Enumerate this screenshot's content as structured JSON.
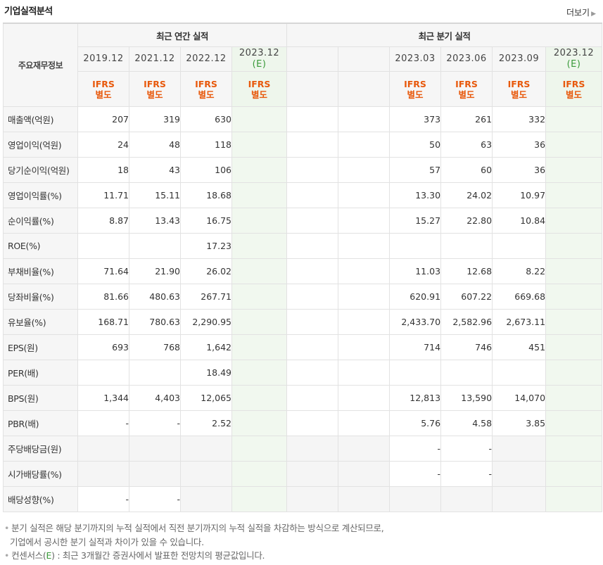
{
  "header": {
    "title": "기업실적분석",
    "more_label": "더보기"
  },
  "table": {
    "row_header_label": "주요재무정보",
    "annual_group_label": "최근 연간 실적",
    "quarter_group_label": "최근 분기 실적",
    "annual_periods": [
      "2019.12",
      "2021.12",
      "2022.12",
      "2023.12"
    ],
    "quarter_periods": [
      "2023.03",
      "2023.06",
      "2023.09",
      "2023.12"
    ],
    "estimate_marker": "(E)",
    "ifrs_line1": "IFRS",
    "ifrs_line2": "별도",
    "rows": [
      {
        "label": "매출액(억원)",
        "annual": [
          "207",
          "319",
          "630",
          ""
        ],
        "quarter": [
          "373",
          "261",
          "332",
          ""
        ]
      },
      {
        "label": "영업이익(억원)",
        "annual": [
          "24",
          "48",
          "118",
          ""
        ],
        "quarter": [
          "50",
          "63",
          "36",
          ""
        ]
      },
      {
        "label": "당기순이익(억원)",
        "annual": [
          "18",
          "43",
          "106",
          ""
        ],
        "quarter": [
          "57",
          "60",
          "36",
          ""
        ]
      },
      {
        "label": "영업이익률(%)",
        "annual": [
          "11.71",
          "15.11",
          "18.68",
          ""
        ],
        "quarter": [
          "13.30",
          "24.02",
          "10.97",
          ""
        ]
      },
      {
        "label": "순이익률(%)",
        "annual": [
          "8.87",
          "13.43",
          "16.75",
          ""
        ],
        "quarter": [
          "15.27",
          "22.80",
          "10.84",
          ""
        ]
      },
      {
        "label": "ROE(%)",
        "annual": [
          "",
          "",
          "17.23",
          ""
        ],
        "quarter": [
          "",
          "",
          "",
          ""
        ]
      },
      {
        "label": "부채비율(%)",
        "annual": [
          "71.64",
          "21.90",
          "26.02",
          ""
        ],
        "quarter": [
          "11.03",
          "12.68",
          "8.22",
          ""
        ]
      },
      {
        "label": "당좌비율(%)",
        "annual": [
          "81.66",
          "480.63",
          "267.71",
          ""
        ],
        "quarter": [
          "620.91",
          "607.22",
          "669.68",
          ""
        ]
      },
      {
        "label": "유보율(%)",
        "annual": [
          "168.71",
          "780.63",
          "2,290.95",
          ""
        ],
        "quarter": [
          "2,433.70",
          "2,582.96",
          "2,673.11",
          ""
        ]
      },
      {
        "label": "EPS(원)",
        "annual": [
          "693",
          "768",
          "1,642",
          ""
        ],
        "quarter": [
          "714",
          "746",
          "451",
          ""
        ]
      },
      {
        "label": "PER(배)",
        "annual": [
          "",
          "",
          "18.49",
          ""
        ],
        "quarter": [
          "",
          "",
          "",
          ""
        ]
      },
      {
        "label": "BPS(원)",
        "annual": [
          "1,344",
          "4,403",
          "12,065",
          ""
        ],
        "quarter": [
          "12,813",
          "13,590",
          "14,070",
          ""
        ]
      },
      {
        "label": "PBR(배)",
        "annual": [
          "-",
          "-",
          "2.52",
          ""
        ],
        "quarter": [
          "5.76",
          "4.58",
          "3.85",
          ""
        ]
      },
      {
        "label": "주당배당금(원)",
        "annual": [
          "",
          "",
          "",
          ""
        ],
        "quarter": [
          "-",
          "-",
          "",
          ""
        ]
      },
      {
        "label": "시가배당률(%)",
        "annual": [
          "",
          "",
          "",
          ""
        ],
        "quarter": [
          "-",
          "-",
          "",
          ""
        ]
      },
      {
        "label": "배당성향(%)",
        "annual": [
          "-",
          "-",
          "",
          ""
        ],
        "quarter": [
          "",
          "",
          "",
          ""
        ]
      }
    ]
  },
  "footnotes": {
    "line1": "분기 실적은 해당 분기까지의 누적 실적에서 직전 분기까지의 누적 실적을 차감하는 방식으로 계산되므로,",
    "line2": "기업에서 공시한 분기 실적과 차이가 있을 수 있습니다.",
    "line3_prefix": "컨센서스(",
    "line3_marker": "E",
    "line3_suffix": ") : 최근 3개월간 증권사에서 발표한 전망치의 평균값입니다."
  },
  "colors": {
    "ifrs": "#e8590c",
    "estimate": "#3a9a3a",
    "estimate_bg": "#f1f8ef"
  }
}
